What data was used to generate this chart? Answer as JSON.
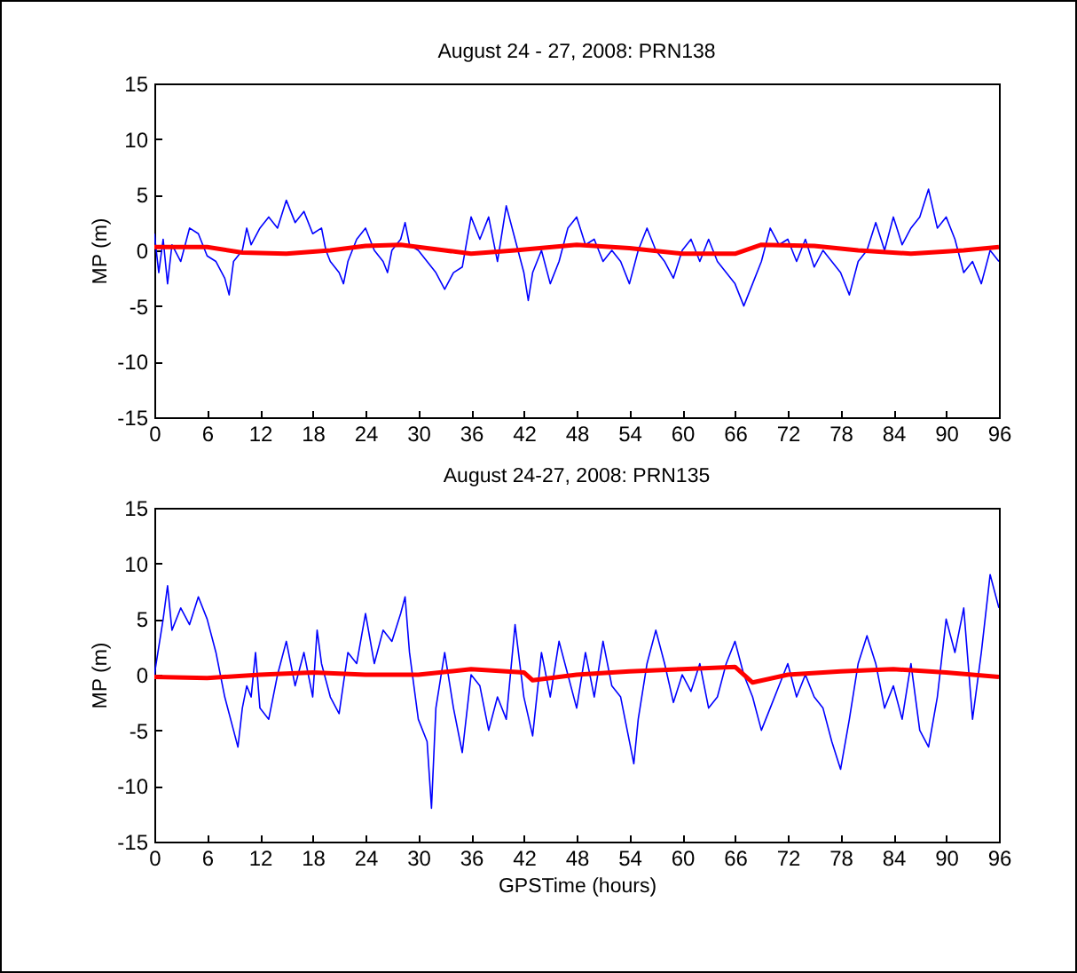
{
  "chart_data": [
    {
      "type": "line",
      "title": "August 24 - 27, 2008: PRN138",
      "ylabel": "MP (m)",
      "xlim": [
        0,
        96
      ],
      "xticks": [
        0,
        6,
        12,
        18,
        24,
        30,
        36,
        42,
        48,
        54,
        60,
        66,
        72,
        78,
        84,
        90,
        96
      ],
      "ylim": [
        -15,
        15
      ],
      "yticks": [
        -15,
        -10,
        -5,
        0,
        5,
        10,
        15
      ],
      "series": [
        {
          "color": "#0000ff",
          "x": [
            0,
            0.5,
            1,
            1.5,
            2,
            3,
            4,
            5,
            6,
            7,
            8,
            8.5,
            9,
            10,
            10.5,
            11,
            12,
            13,
            14,
            15,
            16,
            17,
            18,
            19,
            19.5,
            20,
            21,
            21.5,
            22,
            23,
            24,
            25,
            26,
            26.5,
            27,
            28,
            28.5,
            29,
            30,
            31,
            32,
            33,
            34,
            35,
            36,
            37,
            38,
            39,
            40,
            41,
            42,
            42.5,
            43,
            44,
            45,
            46,
            47,
            48,
            49,
            50,
            51,
            52,
            53,
            54,
            55,
            56,
            57,
            58,
            59,
            60,
            61,
            62,
            63,
            64,
            65,
            66,
            67,
            68,
            69,
            70,
            71,
            72,
            73,
            74,
            75,
            76,
            77,
            78,
            79,
            80,
            81,
            82,
            83,
            84,
            85,
            86,
            87,
            88,
            89,
            90,
            91,
            92,
            93,
            94,
            95,
            96
          ],
          "values": [
            1.5,
            -2,
            1,
            -3,
            0.5,
            -1,
            2,
            1.5,
            -0.5,
            -1,
            -2.5,
            -4,
            -1,
            0,
            2,
            0.5,
            2,
            3,
            2,
            4.5,
            2.5,
            3.5,
            1.5,
            2,
            0,
            -1,
            -2,
            -3,
            -1,
            1,
            2,
            0,
            -1,
            -2,
            0,
            1,
            2.5,
            0.5,
            0,
            -1,
            -2,
            -3.5,
            -2,
            -1.5,
            3,
            1,
            3,
            -1,
            4,
            1,
            -2,
            -4.5,
            -2,
            0,
            -3,
            -1,
            2,
            3,
            0.5,
            1,
            -1,
            0,
            -1,
            -3,
            0,
            2,
            0,
            -1,
            -2.5,
            0,
            1,
            -1,
            1,
            -1,
            -2,
            -3,
            -5,
            -3,
            -1,
            2,
            0.5,
            1,
            -1,
            1,
            -1.5,
            0,
            -1,
            -2,
            -4,
            -1,
            0,
            2.5,
            0,
            3,
            0.5,
            2,
            3,
            5.5,
            2,
            3,
            1,
            -2,
            -1,
            -3,
            0,
            -1
          ]
        },
        {
          "color": "#ff0000",
          "x": [
            0,
            6,
            10,
            15,
            20,
            24,
            28,
            33,
            36,
            41,
            48,
            54,
            60,
            66,
            69,
            75,
            80,
            86,
            92,
            96
          ],
          "values": [
            0.3,
            0.3,
            -0.2,
            -0.3,
            0,
            0.4,
            0.5,
            0,
            -0.3,
            0,
            0.5,
            0.2,
            -0.3,
            -0.3,
            0.5,
            0.4,
            0,
            -0.3,
            0,
            0.3
          ]
        }
      ]
    },
    {
      "type": "line",
      "title": "August 24-27, 2008: PRN135",
      "xlabel": "GPSTime (hours)",
      "ylabel": "MP (m)",
      "xlim": [
        0,
        96
      ],
      "xticks": [
        0,
        6,
        12,
        18,
        24,
        30,
        36,
        42,
        48,
        54,
        60,
        66,
        72,
        78,
        84,
        90,
        96
      ],
      "ylim": [
        -15,
        15
      ],
      "yticks": [
        -15,
        -10,
        -5,
        0,
        5,
        10,
        15
      ],
      "series": [
        {
          "color": "#0000ff",
          "x": [
            0,
            1,
            1.5,
            2,
            3,
            4,
            5,
            6,
            7,
            8,
            9,
            9.5,
            10,
            10.5,
            11,
            11.5,
            12,
            13,
            14,
            15,
            16,
            17,
            18,
            18.5,
            19,
            20,
            21,
            22,
            23,
            24,
            25,
            26,
            27,
            28,
            28.5,
            29,
            30,
            31,
            31.5,
            32,
            33,
            34,
            35,
            36,
            37,
            38,
            39,
            40,
            41,
            42,
            43,
            44,
            45,
            46,
            47,
            48,
            49,
            50,
            51,
            52,
            53,
            54,
            54.5,
            55,
            56,
            57,
            58,
            59,
            60,
            61,
            62,
            63,
            64,
            65,
            66,
            67,
            68,
            69,
            70,
            71,
            72,
            73,
            74,
            75,
            76,
            77,
            78,
            79,
            80,
            81,
            82,
            83,
            84,
            85,
            86,
            87,
            88,
            89,
            90,
            91,
            92,
            93,
            94,
            95,
            96
          ],
          "values": [
            0,
            5,
            8,
            4,
            6,
            4.5,
            7,
            5,
            2,
            -2,
            -5,
            -6.5,
            -3,
            -1,
            -2,
            2,
            -3,
            -4,
            0,
            3,
            -1,
            2,
            -2,
            4,
            1,
            -2,
            -3.5,
            2,
            1,
            5.5,
            1,
            4,
            3,
            5.5,
            7,
            2,
            -4,
            -6,
            -12,
            -3,
            2,
            -3,
            -7,
            0,
            -1,
            -5,
            -2,
            -4,
            4.5,
            -2,
            -5.5,
            2,
            -2,
            3,
            0,
            -3,
            2,
            -2,
            3,
            -1,
            -2,
            -6,
            -8,
            -4,
            1,
            4,
            1,
            -2.5,
            0,
            -1.5,
            1,
            -3,
            -2,
            1,
            3,
            0,
            -2,
            -5,
            -3,
            -1,
            1,
            -2,
            0,
            -2,
            -3,
            -6,
            -8.5,
            -4,
            1,
            3.5,
            1,
            -3,
            -1,
            -4,
            1,
            -5,
            -6.5,
            -2,
            5,
            2,
            6,
            -4,
            2,
            9,
            6
          ]
        },
        {
          "color": "#ff0000",
          "x": [
            0,
            6,
            12,
            18,
            24,
            30,
            36,
            42,
            43,
            48,
            54,
            60,
            66,
            68,
            72,
            78,
            84,
            90,
            96
          ],
          "values": [
            -0.2,
            -0.3,
            0,
            0.2,
            0,
            0,
            0.5,
            0.2,
            -0.5,
            0,
            0.3,
            0.5,
            0.7,
            -0.7,
            0,
            0.3,
            0.5,
            0.2,
            -0.2
          ]
        }
      ]
    }
  ]
}
